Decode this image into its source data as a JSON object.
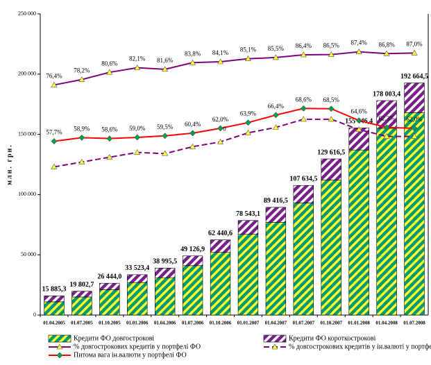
{
  "chart_data": {
    "type": "bar",
    "y_label": "млн. грн.",
    "categories": [
      "01.04.2005",
      "01.07.2005",
      "01.10.2005",
      "01.01.2006",
      "01.04.2006",
      "01.07.2006",
      "01.10.2006",
      "01.01.2007",
      "01.04.2007",
      "01.07.2007",
      "01.10.2007",
      "01.01.2008",
      "01.04.2008",
      "01.07.2008"
    ],
    "ylim": [
      0,
      250000
    ],
    "yticks": [
      0,
      {
        "value": 50000,
        "label": "50 000"
      },
      {
        "value": 100000,
        "label": "100 000"
      },
      {
        "value": 150000,
        "label": "150 000"
      },
      {
        "value": 200000,
        "label": "200 000"
      },
      {
        "value": 250000,
        "label": "250 000"
      }
    ],
    "y2lim": [
      0,
      100
    ],
    "total_labels": [
      "15 885,3",
      "19 802,7",
      "26 444,0",
      "33 523,4",
      "38 995,5",
      "49 126,9",
      "62 440,6",
      "78 543,1",
      "89 416,5",
      "107 634,5",
      "129 616,5",
      "155 446,4",
      "178 003,4",
      "192 664,5"
    ],
    "annotations": [
      {
        "text": "0",
        "category": 6
      }
    ],
    "series": [
      {
        "name": "Кредити ФО довгострокові",
        "type": "bar",
        "color": "#009a6e",
        "hatch_color": "#ffff33",
        "values": [
          11000,
          15000,
          21000,
          27000,
          31000,
          41000,
          52000,
          67000,
          77000,
          93000,
          112000,
          137000,
          155000,
          168000
        ]
      },
      {
        "name": "Кредити ФО короткострокові",
        "type": "bar",
        "color": "#7a1f8a",
        "hatch_color": "#ffffff",
        "values": [
          4900,
          4800,
          5400,
          6500,
          8000,
          8100,
          10400,
          11500,
          12400,
          14600,
          17600,
          18400,
          23000,
          24700
        ]
      },
      {
        "name": "% довгострокових кредитів у портфелі ФО",
        "type": "line",
        "axis": "y2",
        "color": "#800080",
        "marker": "triangle",
        "marker_color": "#ffff33",
        "dash": false,
        "values": [
          76.4,
          78.2,
          80.6,
          82.1,
          81.6,
          83.8,
          84.1,
          85.1,
          85.5,
          86.4,
          86.5,
          87.4,
          86.8,
          87.0
        ],
        "value_labels": [
          "76,4%",
          "78,2%",
          "80,6%",
          "82,1%",
          "81,6%",
          "83,8%",
          "84,1%",
          "85,1%",
          "85,5%",
          "86,4%",
          "86,5%",
          "87,4%",
          "86,8%",
          "87,0%"
        ]
      },
      {
        "name": "% довгострокових кредитів у ін.валюті у портфелі ФО",
        "type": "line",
        "axis": "y2",
        "color": "#800080",
        "marker": "triangle",
        "marker_color": "#ffff33",
        "dash": true,
        "values": [
          49.2,
          50.8,
          52.4,
          54.0,
          53.6,
          55.9,
          57.5,
          60.5,
          62.3,
          65.0,
          65.0,
          61.6,
          59.3,
          59.3
        ]
      },
      {
        "name": "Питома вага ін.валюти у портфелі ФО",
        "type": "line",
        "axis": "y2",
        "color": "#ff0000",
        "marker": "diamond",
        "marker_color": "#00a050",
        "dash": false,
        "values": [
          57.7,
          58.9,
          58.6,
          59.0,
          59.5,
          60.4,
          62.0,
          63.9,
          66.4,
          68.6,
          68.5,
          64.6,
          62.3,
          62.0
        ],
        "value_labels": [
          "57,7%",
          "58,9%",
          "58,6%",
          "59,0%",
          "59,5%",
          "60,4%",
          "62,0%",
          "63,9%",
          "66,4%",
          "68,6%",
          "68,5%",
          "64,6%",
          "62,3%",
          "62,0%"
        ]
      }
    ]
  }
}
